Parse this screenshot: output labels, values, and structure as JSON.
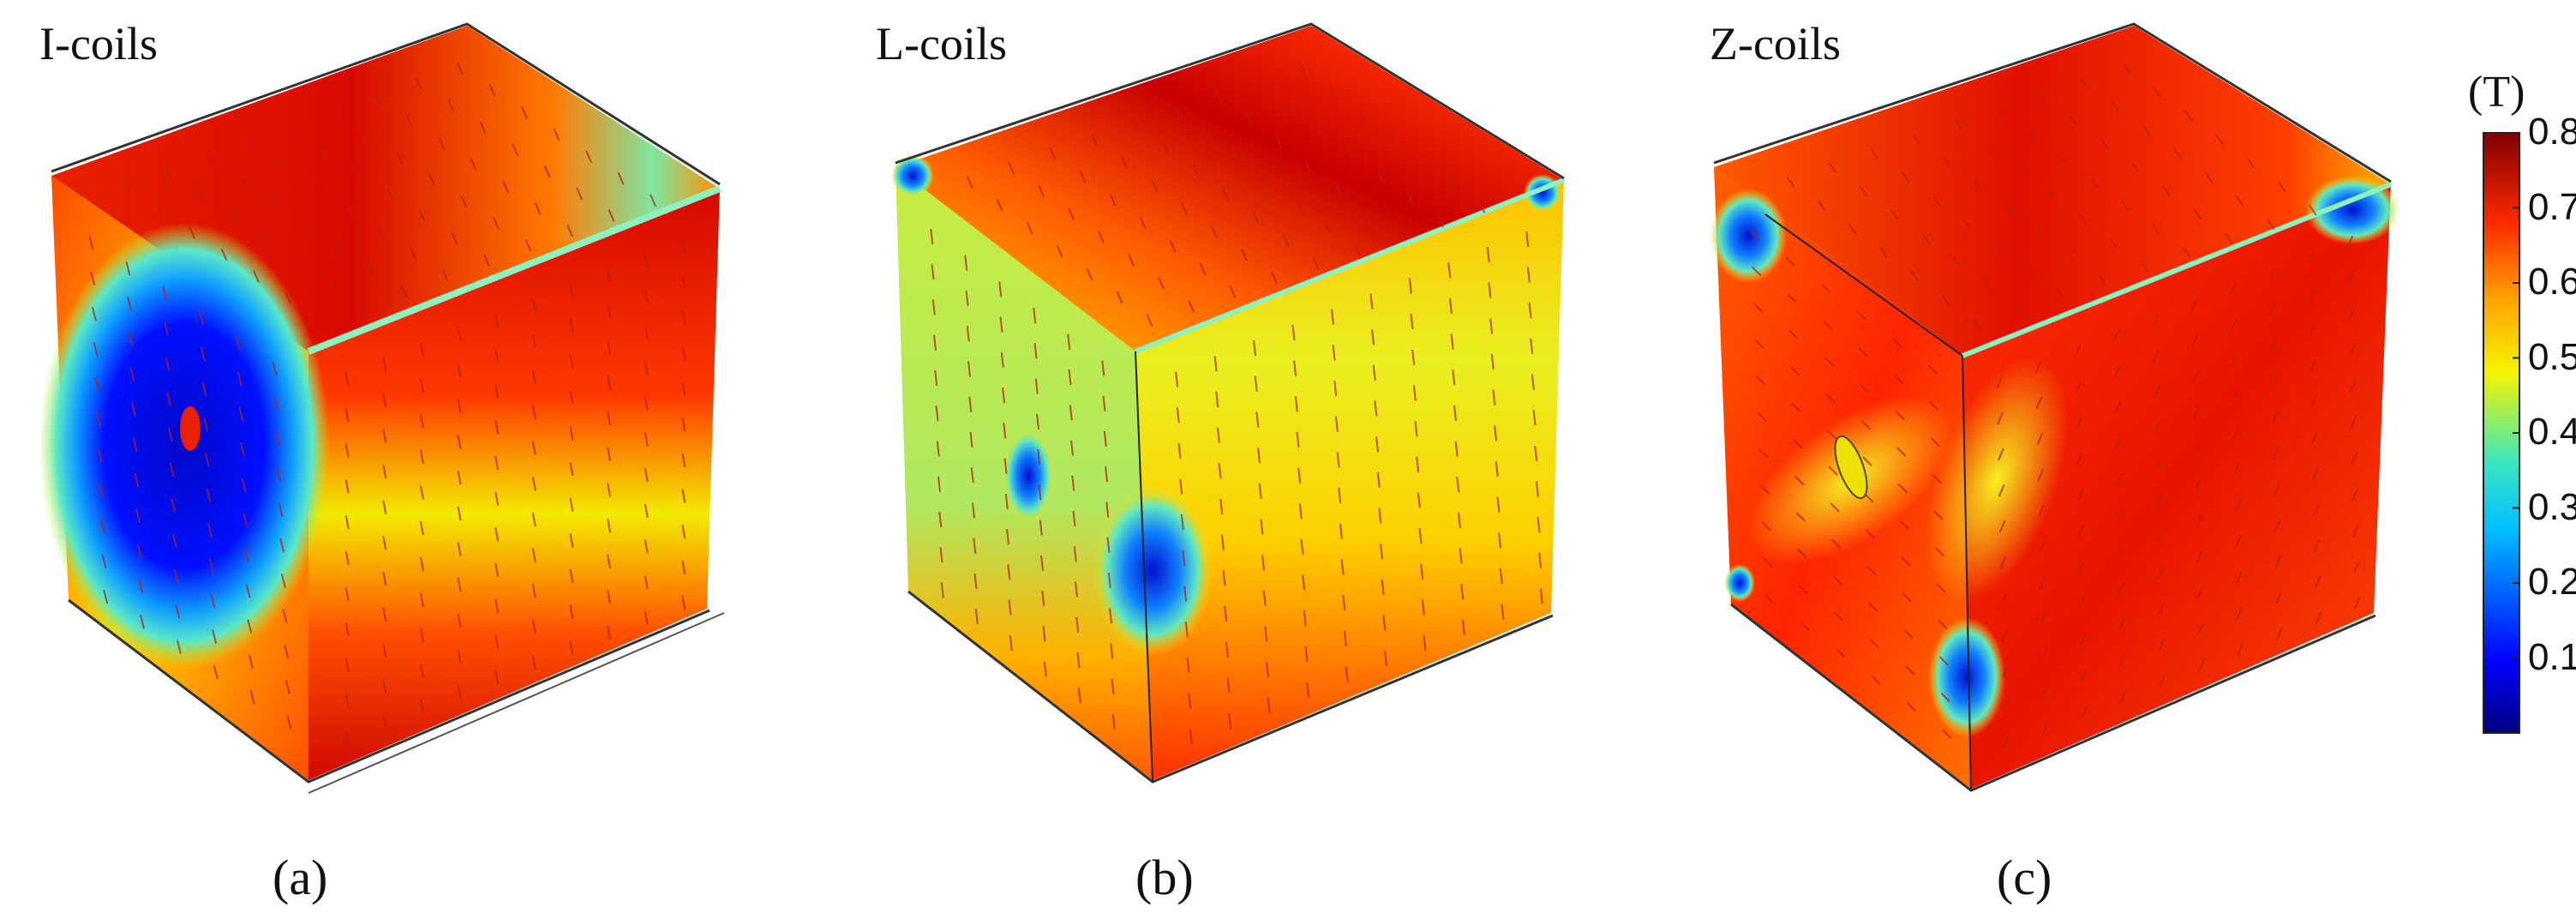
{
  "panels": [
    {
      "title": "I-coils",
      "caption": "(a)"
    },
    {
      "title": "L-coils",
      "caption": "(b)"
    },
    {
      "title": "Z-coils",
      "caption": "(c)"
    }
  ],
  "colorbar": {
    "unit": "(T)",
    "ticks": [
      "0.8",
      "0.7",
      "0.6",
      "0.5",
      "0.4",
      "0.3",
      "0.2",
      "0.1"
    ],
    "colormap": "jet",
    "colors": [
      "#00007f",
      "#0000ff",
      "#00bfff",
      "#39e6c0",
      "#f5f500",
      "#ffa500",
      "#ff2a00",
      "#800000"
    ],
    "min": 0.0,
    "max": 0.8
  }
}
